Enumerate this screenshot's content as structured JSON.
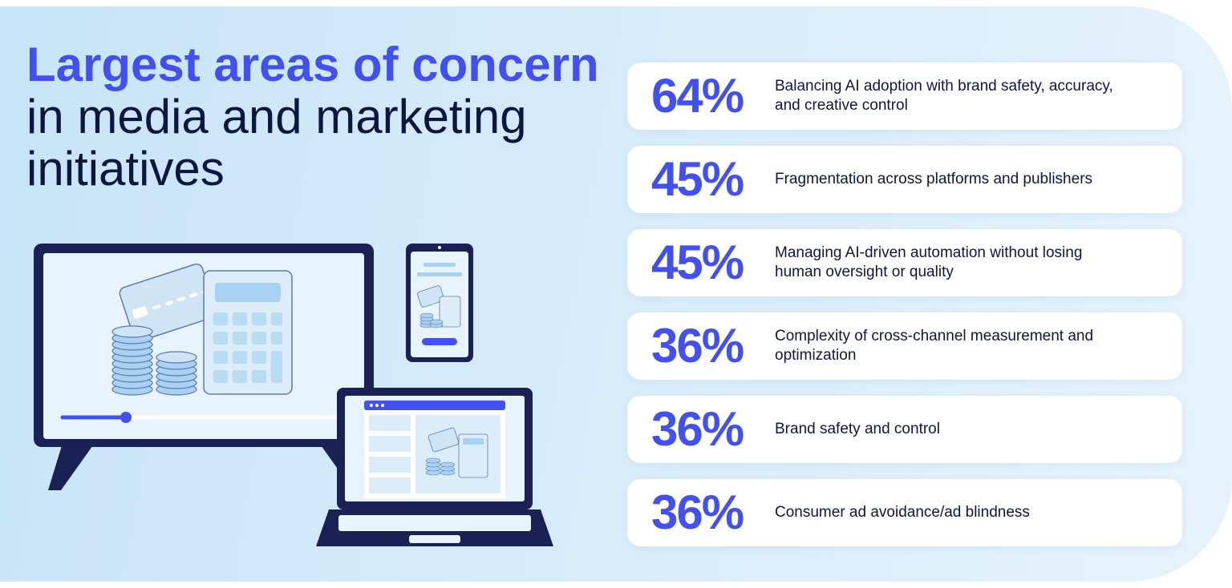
{
  "headline": {
    "highlight": "Largest areas of concern",
    "rest": " in media and marketing initiatives"
  },
  "items": [
    {
      "percent": "64%",
      "text": "Balancing AI adoption with brand safety, accuracy, and creative control"
    },
    {
      "percent": "45%",
      "text": "Fragmentation across platforms and publishers"
    },
    {
      "percent": "45%",
      "text": "Managing AI-driven automation without losing human oversight or quality"
    },
    {
      "percent": "36%",
      "text": "Complexity of cross-channel measurement and optimization"
    },
    {
      "percent": "36%",
      "text": "Brand safety and control"
    },
    {
      "percent": "36%",
      "text": "Consumer ad avoidance/ad blindness"
    }
  ],
  "colors": {
    "accent": "#4350f0",
    "navy": "#0d1640",
    "background": "#d6ebfa"
  },
  "icons": [
    "monitor-icon",
    "smartphone-icon",
    "laptop-icon",
    "credit-card-icon",
    "calculator-icon",
    "coin-stack-icon"
  ]
}
